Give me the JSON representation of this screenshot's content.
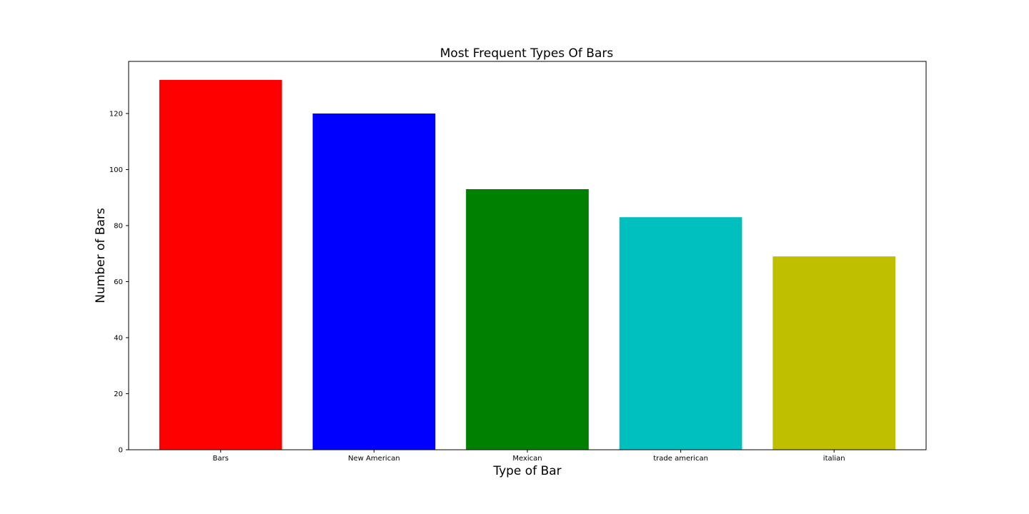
{
  "chart_data": {
    "type": "bar",
    "title": "Most Frequent Types Of Bars",
    "xlabel": "Type of Bar",
    "ylabel": "Number of Bars",
    "categories": [
      "Bars",
      "New American",
      "Mexican",
      "trade american",
      "italian"
    ],
    "values": [
      132,
      120,
      93,
      83,
      69
    ],
    "colors": [
      "#ff0000",
      "#0000ff",
      "#008000",
      "#00bfbf",
      "#bfbf00"
    ],
    "ylim": [
      0,
      138.6
    ],
    "yticks": [
      0,
      20,
      40,
      60,
      80,
      100,
      120
    ],
    "grid": false
  }
}
